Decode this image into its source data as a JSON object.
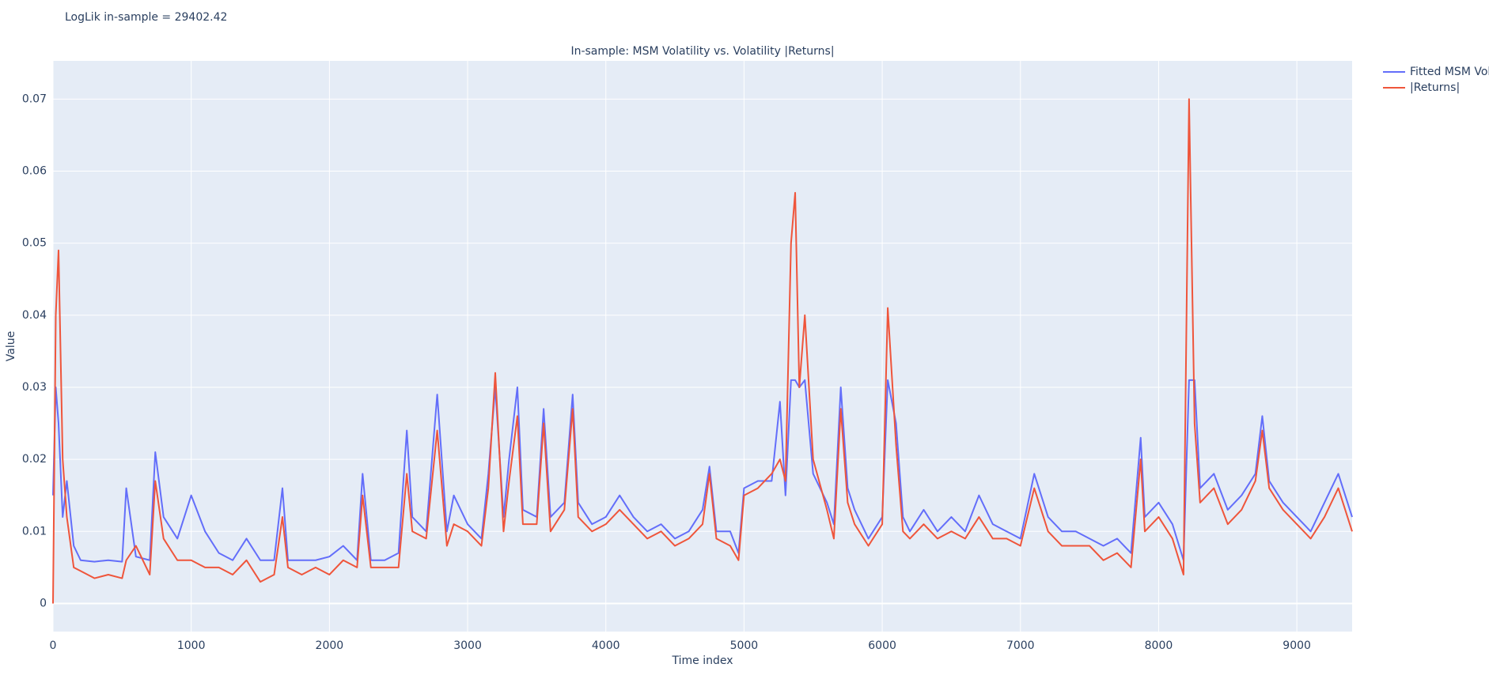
{
  "chart_data": {
    "type": "line",
    "title": "In-sample: MSM Volatility vs. Volatility |Returns|",
    "annotation": "LogLik in-sample = 29402.42",
    "x_label": "Time index",
    "y_label": "Value",
    "legend_loc": "outside right",
    "grid": true,
    "xlim": [
      0,
      9400
    ],
    "xticks": [
      0,
      1000,
      2000,
      3000,
      4000,
      5000,
      6000,
      7000,
      8000,
      9000
    ],
    "ylim": [
      -0.0039,
      0.0753
    ],
    "yticks": [
      0,
      0.01,
      0.02,
      0.03,
      0.04,
      0.05,
      0.06,
      0.07
    ],
    "x": [
      0,
      20,
      40,
      70,
      100,
      150,
      200,
      300,
      400,
      500,
      530,
      600,
      700,
      740,
      800,
      900,
      1000,
      1100,
      1200,
      1300,
      1400,
      1500,
      1600,
      1660,
      1700,
      1800,
      1900,
      2000,
      2100,
      2200,
      2240,
      2300,
      2400,
      2500,
      2560,
      2600,
      2700,
      2780,
      2850,
      2900,
      3000,
      3100,
      3150,
      3200,
      3260,
      3300,
      3360,
      3400,
      3500,
      3550,
      3600,
      3700,
      3760,
      3800,
      3900,
      4000,
      4100,
      4200,
      4300,
      4400,
      4500,
      4600,
      4700,
      4750,
      4800,
      4900,
      4960,
      5000,
      5100,
      5200,
      5260,
      5300,
      5340,
      5370,
      5400,
      5440,
      5500,
      5600,
      5650,
      5700,
      5750,
      5800,
      5900,
      6000,
      6040,
      6100,
      6150,
      6200,
      6300,
      6400,
      6500,
      6600,
      6700,
      6800,
      6900,
      7000,
      7100,
      7200,
      7300,
      7400,
      7500,
      7600,
      7700,
      7800,
      7870,
      7900,
      8000,
      8100,
      8180,
      8220,
      8260,
      8300,
      8400,
      8500,
      8600,
      8700,
      8750,
      8800,
      8900,
      9000,
      9100,
      9200,
      9300,
      9400
    ],
    "series": [
      {
        "name": "Fitted MSM Vol",
        "color": "#636efa",
        "values": [
          0.015,
          0.03,
          0.025,
          0.012,
          0.017,
          0.008,
          0.006,
          0.0058,
          0.006,
          0.0058,
          0.016,
          0.0065,
          0.006,
          0.021,
          0.012,
          0.009,
          0.015,
          0.01,
          0.007,
          0.006,
          0.009,
          0.006,
          0.006,
          0.016,
          0.006,
          0.006,
          0.006,
          0.0065,
          0.008,
          0.006,
          0.018,
          0.006,
          0.006,
          0.007,
          0.024,
          0.012,
          0.01,
          0.029,
          0.01,
          0.015,
          0.011,
          0.009,
          0.018,
          0.03,
          0.012,
          0.02,
          0.03,
          0.013,
          0.012,
          0.027,
          0.012,
          0.014,
          0.029,
          0.014,
          0.011,
          0.012,
          0.015,
          0.012,
          0.01,
          0.011,
          0.009,
          0.01,
          0.013,
          0.019,
          0.01,
          0.01,
          0.007,
          0.016,
          0.017,
          0.017,
          0.028,
          0.015,
          0.031,
          0.031,
          0.03,
          0.031,
          0.018,
          0.014,
          0.011,
          0.03,
          0.016,
          0.013,
          0.009,
          0.012,
          0.031,
          0.025,
          0.012,
          0.01,
          0.013,
          0.01,
          0.012,
          0.01,
          0.015,
          0.011,
          0.01,
          0.009,
          0.018,
          0.012,
          0.01,
          0.01,
          0.009,
          0.008,
          0.009,
          0.007,
          0.023,
          0.012,
          0.014,
          0.011,
          0.006,
          0.031,
          0.031,
          0.016,
          0.018,
          0.013,
          0.015,
          0.018,
          0.026,
          0.017,
          0.014,
          0.012,
          0.01,
          0.014,
          0.018,
          0.012
        ]
      },
      {
        "name": "|Returns|",
        "color": "#ef553b",
        "values": [
          0.0,
          0.04,
          0.049,
          0.02,
          0.012,
          0.005,
          0.0045,
          0.0035,
          0.004,
          0.0035,
          0.006,
          0.008,
          0.004,
          0.017,
          0.009,
          0.006,
          0.006,
          0.005,
          0.005,
          0.004,
          0.006,
          0.003,
          0.004,
          0.012,
          0.005,
          0.004,
          0.005,
          0.004,
          0.006,
          0.005,
          0.015,
          0.005,
          0.005,
          0.005,
          0.018,
          0.01,
          0.009,
          0.024,
          0.008,
          0.011,
          0.01,
          0.008,
          0.016,
          0.032,
          0.01,
          0.017,
          0.026,
          0.011,
          0.011,
          0.025,
          0.01,
          0.013,
          0.027,
          0.012,
          0.01,
          0.011,
          0.013,
          0.011,
          0.009,
          0.01,
          0.008,
          0.009,
          0.011,
          0.018,
          0.009,
          0.008,
          0.006,
          0.015,
          0.016,
          0.018,
          0.02,
          0.017,
          0.05,
          0.057,
          0.03,
          0.04,
          0.02,
          0.013,
          0.009,
          0.027,
          0.014,
          0.011,
          0.008,
          0.011,
          0.041,
          0.022,
          0.01,
          0.009,
          0.011,
          0.009,
          0.01,
          0.009,
          0.012,
          0.009,
          0.009,
          0.008,
          0.016,
          0.01,
          0.008,
          0.008,
          0.008,
          0.006,
          0.007,
          0.005,
          0.02,
          0.01,
          0.012,
          0.009,
          0.004,
          0.07,
          0.025,
          0.014,
          0.016,
          0.011,
          0.013,
          0.017,
          0.024,
          0.016,
          0.013,
          0.011,
          0.009,
          0.012,
          0.016,
          0.01
        ]
      }
    ]
  }
}
